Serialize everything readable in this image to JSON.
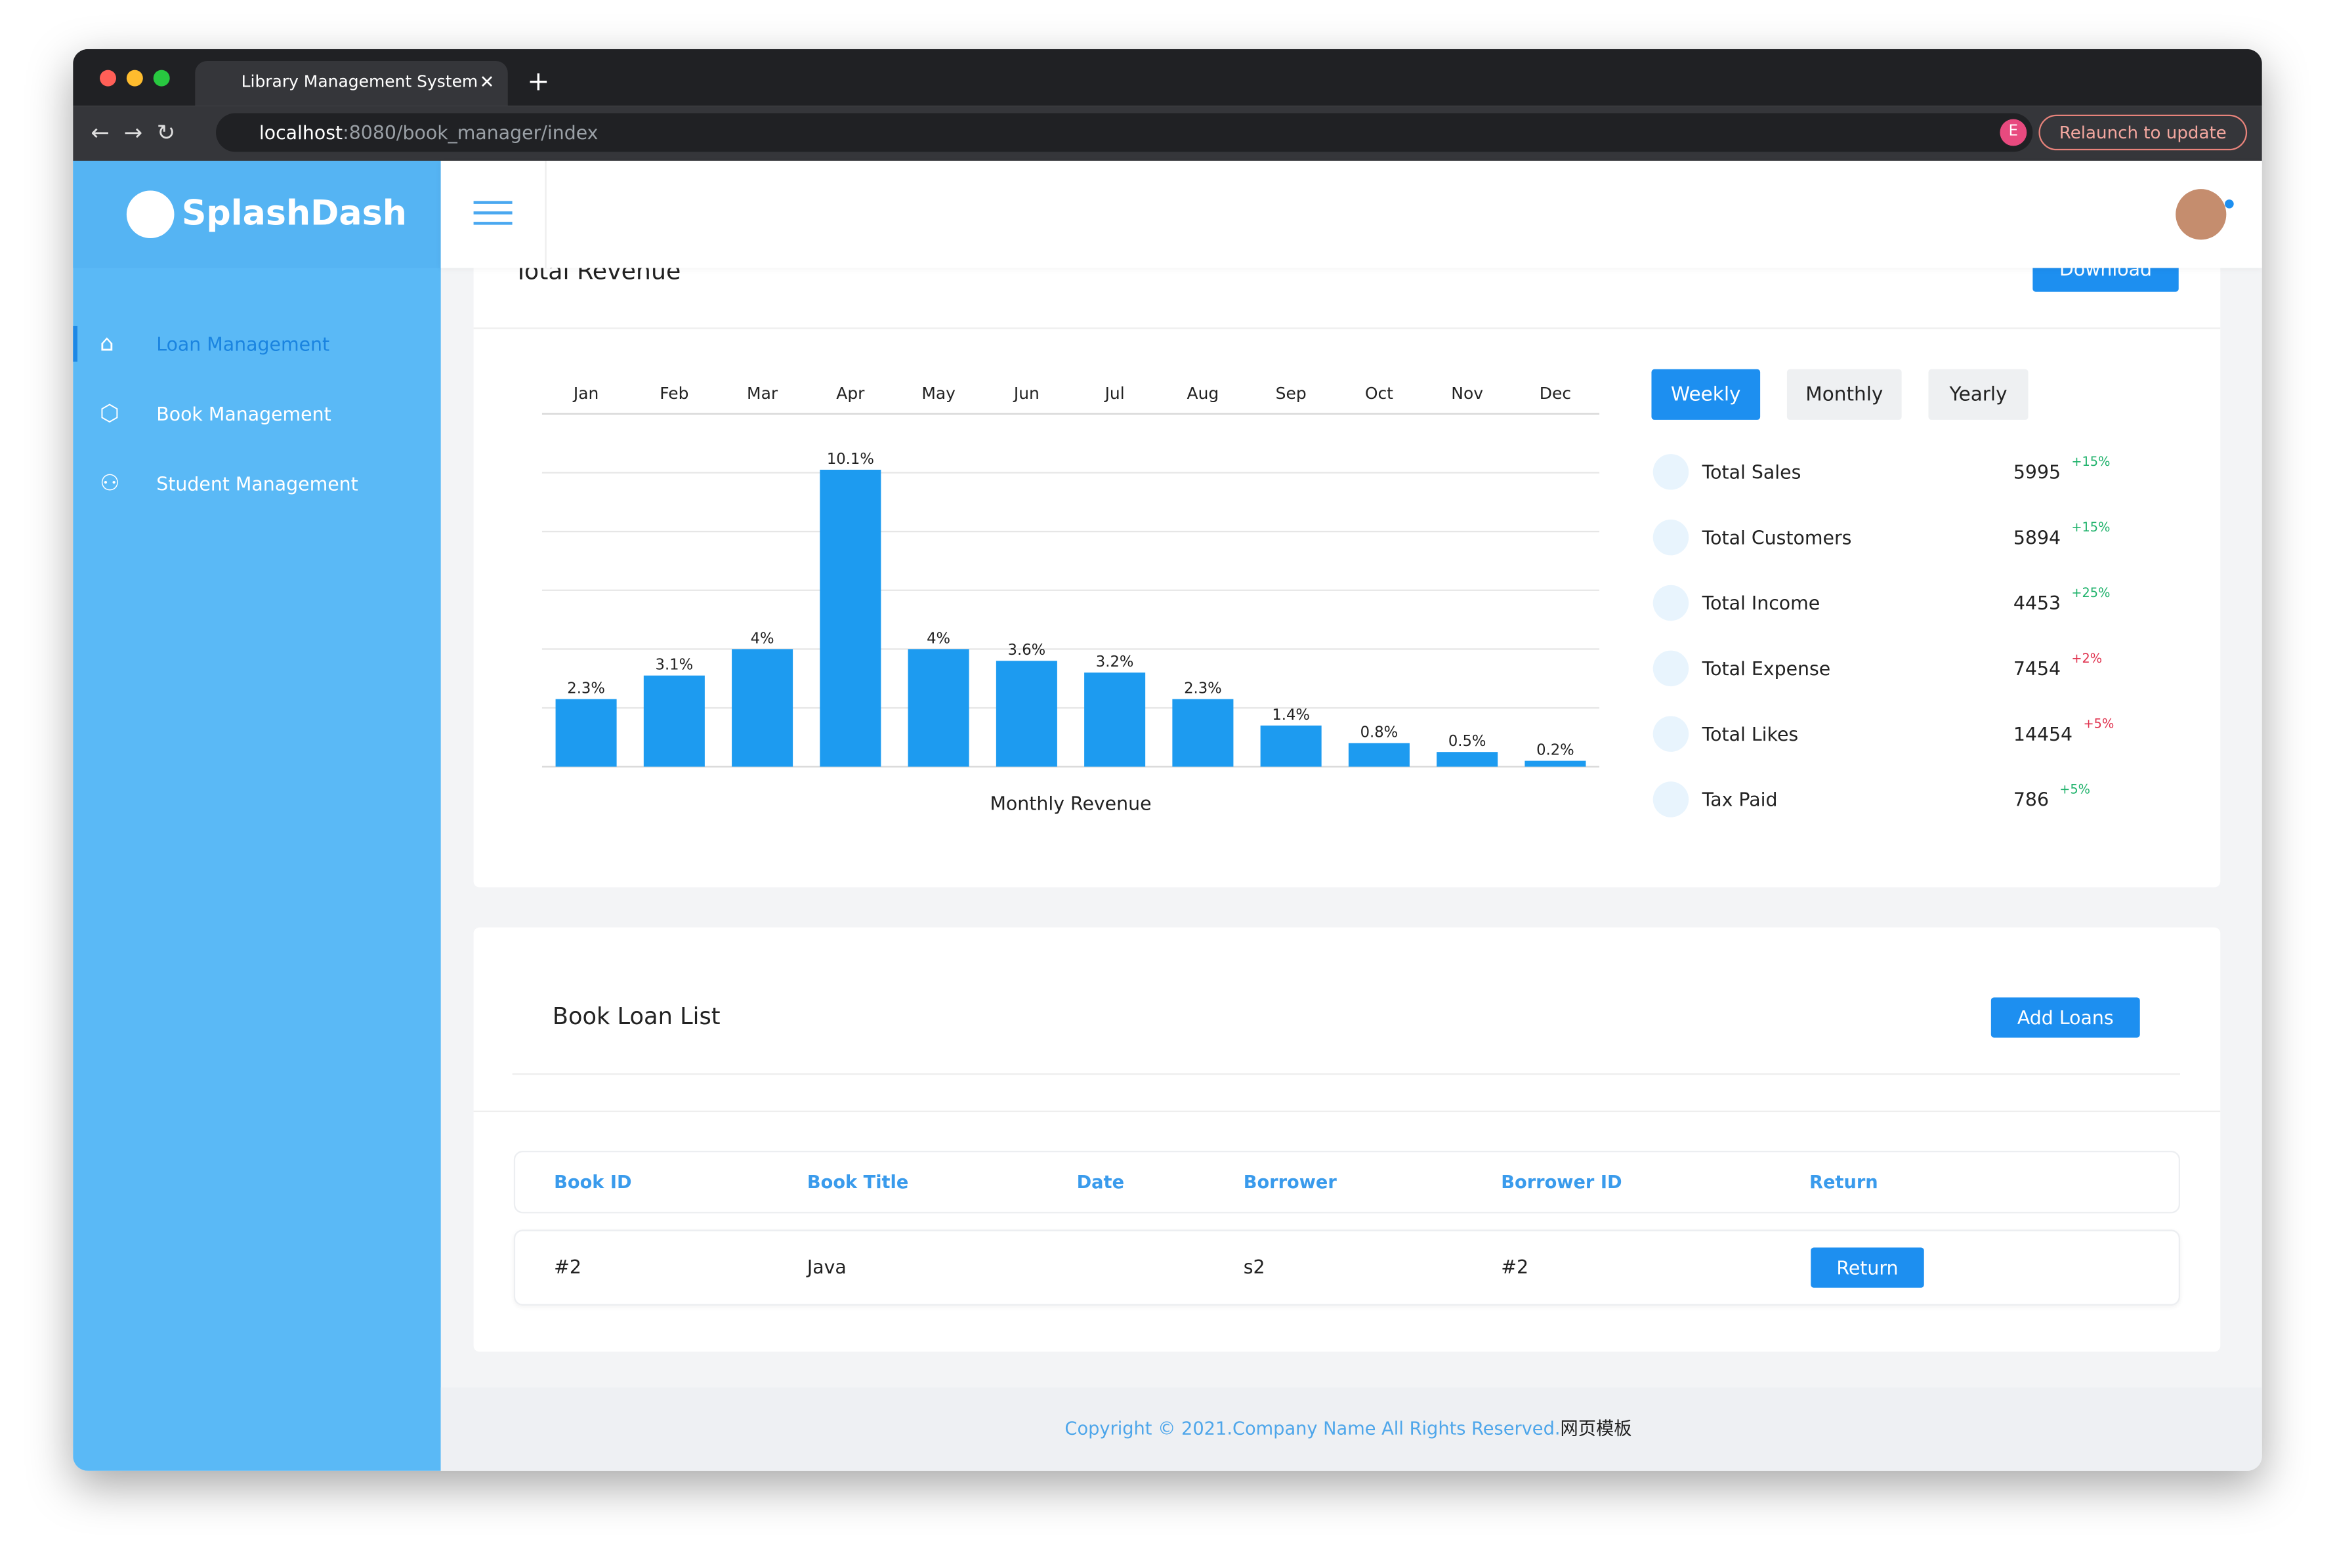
{
  "browser": {
    "tab_title": "Library Management System",
    "url_host": "localhost",
    "url_path": ":8080/book_manager/index",
    "profile_initial": "E",
    "relaunch": "Relaunch to update"
  },
  "sidebar": {
    "brand": "SplashDash",
    "menu": [
      "Loan Management",
      "Book Management",
      "Student Management"
    ]
  },
  "revenue": {
    "title": "Total Revenue",
    "download": "Download",
    "tabs": [
      "Weekly",
      "Monthly",
      "Yearly"
    ],
    "stats": [
      {
        "name": "Total Sales",
        "value": 5995,
        "change": "+15%"
      },
      {
        "name": "Total Customers",
        "value": 5894,
        "change": "+15%"
      },
      {
        "name": "Total Income",
        "value": 4453,
        "change": "+25%"
      },
      {
        "name": "Total Expense",
        "value": 7454,
        "change": "+2%"
      },
      {
        "name": "Total Likes",
        "value": 14454,
        "change": "+5%"
      },
      {
        "name": "Tax Paid",
        "value": 786,
        "change": "+5%"
      }
    ]
  },
  "chart_data": {
    "type": "bar",
    "x_label": "Monthly Revenue",
    "categories": [
      "Jan",
      "Feb",
      "Mar",
      "Apr",
      "May",
      "Jun",
      "Jul",
      "Aug",
      "Sep",
      "Oct",
      "Nov",
      "Dec"
    ],
    "values": [
      2.3,
      3.1,
      4,
      10.1,
      4,
      3.6,
      3.2,
      2.3,
      1.4,
      0.8,
      0.5,
      0.2
    ],
    "value_labels": [
      "2.3%",
      "3.1%",
      "4%",
      "10.1%",
      "4%",
      "3.6%",
      "3.2%",
      "2.3%",
      "1.4%",
      "0.8%",
      "0.5%",
      "0.2%"
    ],
    "color": "#1d9bf0",
    "ylim": [
      0,
      12
    ],
    "yticks": [
      0,
      2,
      4,
      6,
      8,
      10,
      12
    ],
    "grid": true
  },
  "loans": {
    "title": "Book Loan List",
    "add": "Add Loans",
    "table": {
      "headers": [
        "Book ID",
        "Book Title",
        "Date",
        "Borrower",
        "Borrower ID",
        "Return"
      ],
      "rows": [
        [
          "#2",
          "Java",
          "",
          "s2",
          "#2",
          "Return"
        ]
      ]
    }
  },
  "footer": {
    "copyright": "Copyright © 2021.Company Name All Rights Reserved.",
    "link": "网页模板"
  }
}
